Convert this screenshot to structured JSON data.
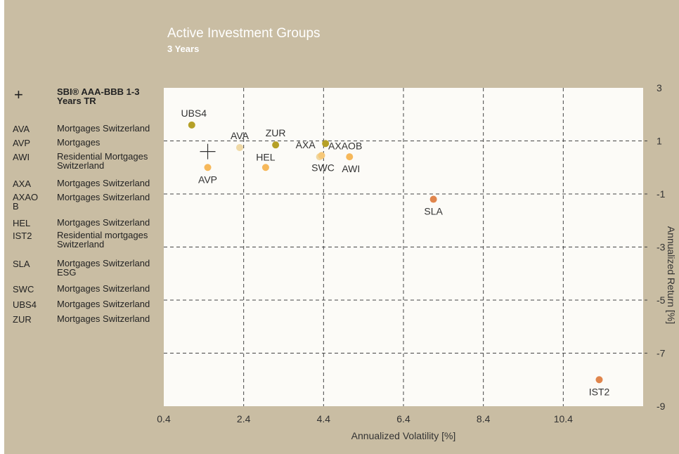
{
  "header": {
    "title": "Active Investment Groups",
    "subtitle": "3 Years"
  },
  "legend": {
    "benchmark": {
      "symbol": "+",
      "label": "SBI® AAA-BBB 1-3 Years TR"
    },
    "items": [
      {
        "code": "AVA",
        "description": "Mortgages Switzerland"
      },
      {
        "code": "AVP",
        "description": "Mortgages"
      },
      {
        "code": "AWI",
        "description": "Residential Mortgages Switzerland"
      },
      {
        "code": "AXA",
        "description": "Mortgages Switzerland"
      },
      {
        "code": "AXAO B",
        "description": "Mortgages Switzerland"
      },
      {
        "code": "HEL",
        "description": "Mortgages Switzerland"
      },
      {
        "code": "IST2",
        "description": "Residential mortgages Switzerland"
      },
      {
        "code": "SLA",
        "description": "Mortgages Switzerland ESG"
      },
      {
        "code": "SWC",
        "description": "Mortgages Switzerland"
      },
      {
        "code": "UBS4",
        "description": "Mortgages Switzerland"
      },
      {
        "code": "ZUR",
        "description": "Mortgages Switzerland"
      }
    ]
  },
  "chart_data": {
    "type": "scatter",
    "xlabel": "Annualized Volatility [%]",
    "ylabel": "Annualized Return [%]",
    "xlim": [
      0.4,
      12.4
    ],
    "ylim": [
      -9,
      3
    ],
    "xticks": [
      0.4,
      2.4,
      4.4,
      6.4,
      8.4,
      10.4
    ],
    "yticks": [
      3,
      1,
      -1,
      -3,
      -5,
      -7,
      -9
    ],
    "xtick_labels": [
      "0.4",
      "2.4",
      "4.4",
      "6.4",
      "8.4",
      "10.4"
    ],
    "ytick_labels": [
      "3",
      "1",
      "-1",
      "-3",
      "-5",
      "-7",
      "-9"
    ],
    "grid": true,
    "y_axis_position": "right",
    "benchmark": {
      "x": 1.5,
      "y": 0.6
    },
    "points": [
      {
        "label": "UBS4",
        "x": 1.1,
        "y": 1.6,
        "color": "#b5a027"
      },
      {
        "label": "AVA",
        "x": 2.3,
        "y": 0.75,
        "color": "#efd9a6"
      },
      {
        "label": "AVP",
        "x": 1.5,
        "y": 0.0,
        "color": "#f6b85a"
      },
      {
        "label": "ZUR",
        "x": 3.2,
        "y": 0.85,
        "color": "#b5a027"
      },
      {
        "label": "HEL",
        "x": 2.95,
        "y": 0.0,
        "color": "#f6b85a"
      },
      {
        "label": "AXA",
        "x": 4.3,
        "y": 0.4,
        "color": "#f0d7a0"
      },
      {
        "label": "SWC",
        "x": 4.35,
        "y": 0.45,
        "color": "#f6c878"
      },
      {
        "label": "AXAOB",
        "x": 4.45,
        "y": 0.9,
        "color": "#b5a027"
      },
      {
        "label": "AWI",
        "x": 5.05,
        "y": 0.4,
        "color": "#f6b85a"
      },
      {
        "label": "SLA",
        "x": 7.15,
        "y": -1.2,
        "color": "#e0854c"
      },
      {
        "label": "IST2",
        "x": 11.3,
        "y": -8.0,
        "color": "#e0854c"
      }
    ]
  }
}
